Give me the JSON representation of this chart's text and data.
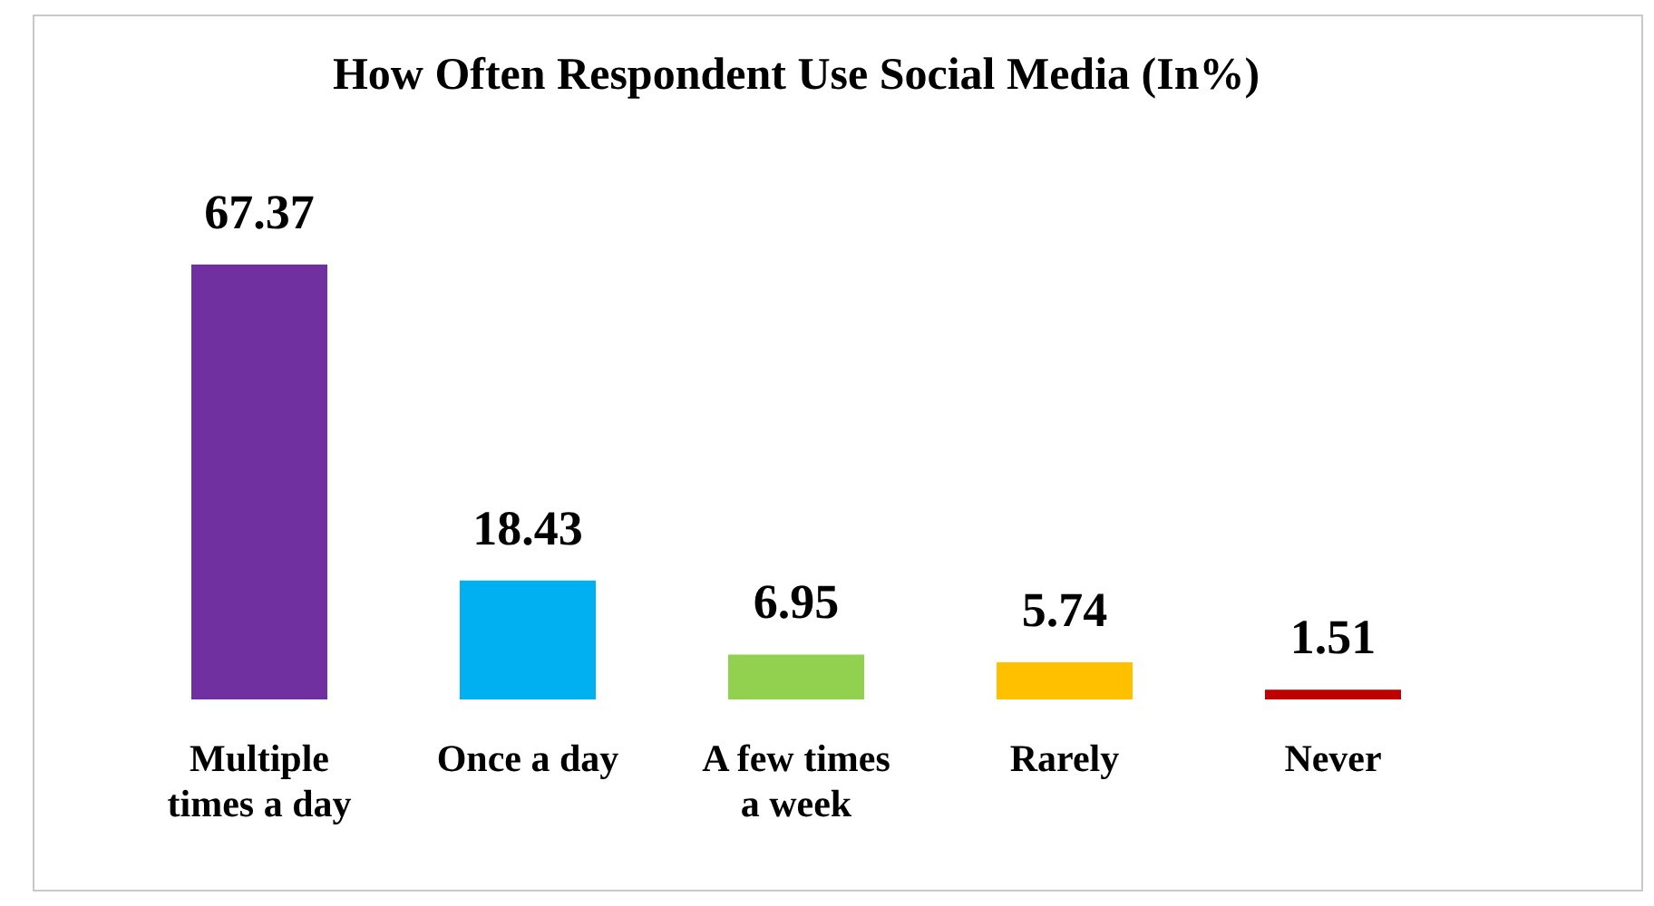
{
  "chart_data": {
    "type": "bar",
    "title": "How Often Respondent Use Social Media (In%)",
    "categories": [
      "Multiple times a day",
      "Once a day",
      "A few times a week",
      "Rarely",
      "Never"
    ],
    "values": [
      67.37,
      18.43,
      6.95,
      5.74,
      1.51
    ],
    "colors": [
      "#7030a0",
      "#00b0f0",
      "#92d050",
      "#ffc000",
      "#c00000"
    ],
    "data_labels": true
  }
}
